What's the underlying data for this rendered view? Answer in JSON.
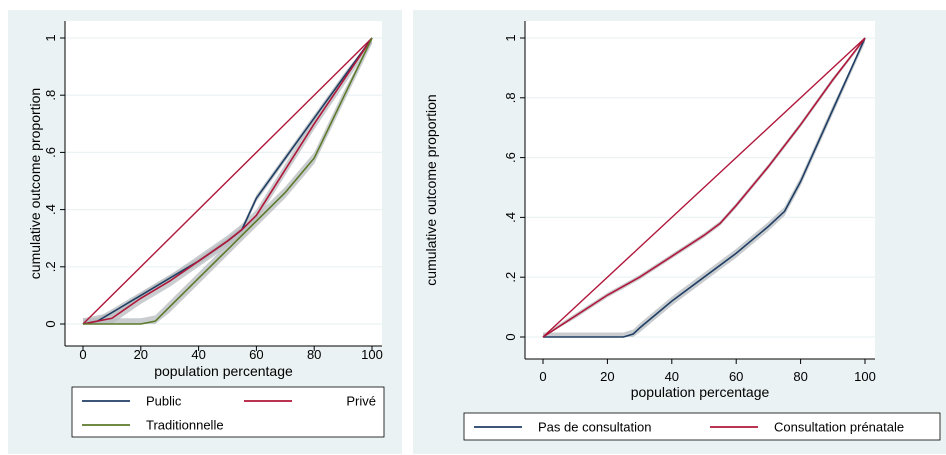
{
  "chart_data": [
    {
      "type": "line",
      "xlabel": "population percentage",
      "ylabel": "cumulative outcome proportion",
      "xlim": [
        0,
        100
      ],
      "ylim": [
        0,
        1
      ],
      "xticks": [
        0,
        20,
        40,
        60,
        80,
        100
      ],
      "xtick_labels": [
        "0",
        "20",
        "40",
        "60",
        "80",
        "100"
      ],
      "yticks": [
        0,
        0.2,
        0.4,
        0.6,
        0.8,
        1
      ],
      "ytick_labels": [
        "0",
        ".2",
        ".4",
        ".6",
        ".8",
        "1"
      ],
      "grid": true,
      "legend_position": "bottom",
      "equality_line": {
        "x": [
          0,
          100
        ],
        "y": [
          0,
          1
        ],
        "color": "#b0173a"
      },
      "series": [
        {
          "name": "Public",
          "color": "#1f3e64",
          "x": [
            0,
            5,
            10,
            20,
            30,
            40,
            50,
            55,
            60,
            70,
            80,
            90,
            100
          ],
          "y": [
            0,
            0.01,
            0.04,
            0.1,
            0.16,
            0.22,
            0.29,
            0.33,
            0.44,
            0.58,
            0.72,
            0.86,
            1
          ],
          "band": 0.012
        },
        {
          "name": "Privé",
          "color": "#b0173a",
          "x": [
            0,
            10,
            20,
            30,
            40,
            50,
            55,
            60,
            70,
            80,
            90,
            100
          ],
          "y": [
            0,
            0.02,
            0.09,
            0.15,
            0.22,
            0.29,
            0.33,
            0.38,
            0.54,
            0.7,
            0.85,
            1
          ],
          "band": 0.02
        },
        {
          "name": "Traditionnelle",
          "color": "#5c7a2a",
          "x": [
            0,
            20,
            25,
            30,
            40,
            50,
            60,
            70,
            75,
            80,
            90,
            100
          ],
          "y": [
            0,
            0,
            0.01,
            0.06,
            0.16,
            0.26,
            0.36,
            0.46,
            0.52,
            0.58,
            0.79,
            1
          ],
          "band": 0.02
        }
      ]
    },
    {
      "type": "line",
      "xlabel": "population percentage",
      "ylabel": "cumulative outcome proportion",
      "xlim": [
        0,
        100
      ],
      "ylim": [
        0,
        1
      ],
      "xticks": [
        0,
        20,
        40,
        60,
        80,
        100
      ],
      "xtick_labels": [
        "0",
        "20",
        "40",
        "60",
        "80",
        "100"
      ],
      "yticks": [
        0,
        0.2,
        0.4,
        0.6,
        0.8,
        1
      ],
      "ytick_labels": [
        "0",
        ".2",
        ".4",
        ".6",
        ".8",
        "1"
      ],
      "grid": true,
      "legend_position": "bottom",
      "equality_line": {
        "x": [
          0,
          100
        ],
        "y": [
          0,
          1
        ],
        "color": "#b0173a"
      },
      "series": [
        {
          "name": "Pas de consultation",
          "color": "#1f3e64",
          "x": [
            0,
            25,
            28,
            30,
            40,
            50,
            60,
            70,
            75,
            80,
            90,
            100
          ],
          "y": [
            0,
            0,
            0.01,
            0.03,
            0.12,
            0.2,
            0.28,
            0.37,
            0.42,
            0.52,
            0.76,
            1
          ],
          "band": 0.015
        },
        {
          "name": "Consultation prénatale",
          "color": "#b0173a",
          "x": [
            0,
            10,
            20,
            30,
            40,
            50,
            55,
            60,
            70,
            80,
            90,
            100
          ],
          "y": [
            0,
            0.07,
            0.14,
            0.2,
            0.27,
            0.34,
            0.38,
            0.44,
            0.57,
            0.71,
            0.86,
            1
          ],
          "band": 0.008
        }
      ]
    }
  ]
}
